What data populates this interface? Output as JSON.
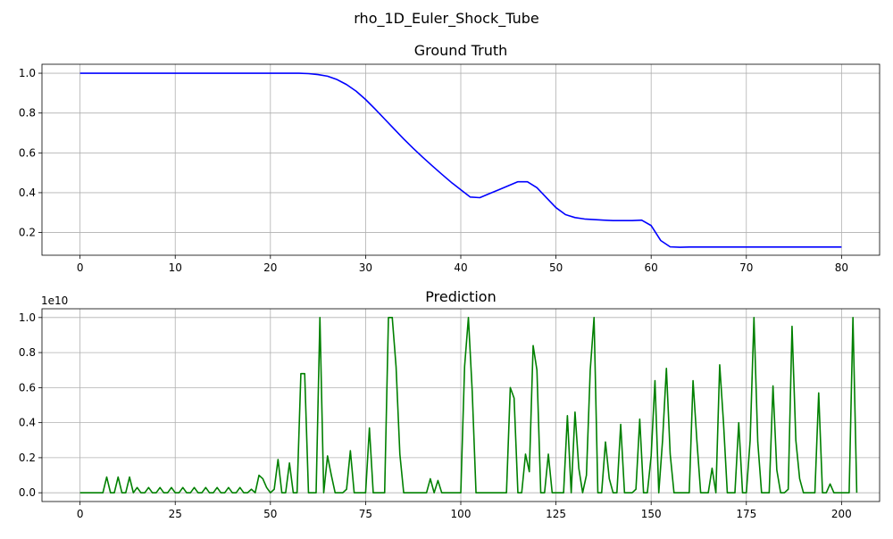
{
  "figure": {
    "suptitle": "rho_1D_Euler_Shock_Tube"
  },
  "chart_data": [
    {
      "type": "line",
      "title": "Ground Truth",
      "xlabel": "",
      "ylabel": "",
      "xlim": [
        -4,
        84
      ],
      "ylim": [
        0.086,
        1.045
      ],
      "xticks": [
        0,
        10,
        20,
        30,
        40,
        50,
        60,
        70,
        80
      ],
      "yticks": [
        0.2,
        0.4,
        0.6,
        0.8,
        1.0
      ],
      "ytick_labels": [
        "0.2",
        "0.4",
        "0.6",
        "0.8",
        "1.0"
      ],
      "y_offset_label": "",
      "grid": true,
      "color": "#0000ff",
      "series": [
        {
          "x": [
            0,
            1,
            2,
            3,
            4,
            5,
            6,
            7,
            8,
            9,
            10,
            11,
            12,
            13,
            14,
            15,
            16,
            17,
            18,
            19,
            20,
            21,
            22,
            23,
            24,
            25,
            26,
            27,
            28,
            29,
            30,
            31,
            32,
            33,
            34,
            35,
            36,
            37,
            38,
            39,
            40,
            41,
            42,
            43,
            44,
            45,
            46,
            47,
            48,
            49,
            50,
            51,
            52,
            53,
            54,
            55,
            56,
            57,
            58,
            59,
            60,
            61,
            62,
            63,
            64,
            65,
            66,
            67,
            68,
            69,
            70,
            71,
            72,
            73,
            74,
            75,
            76,
            77,
            78,
            79,
            80
          ],
          "values": [
            1.0,
            1.0,
            1.0,
            1.0,
            1.0,
            1.0,
            1.0,
            1.0,
            1.0,
            1.0,
            1.0,
            1.0,
            1.0,
            1.0,
            1.0,
            1.0,
            1.0,
            1.0,
            1.0,
            1.0,
            1.0,
            1.0,
            1.0,
            1.0,
            0.998,
            0.993,
            0.985,
            0.968,
            0.943,
            0.91,
            0.868,
            0.82,
            0.77,
            0.72,
            0.67,
            0.623,
            0.578,
            0.535,
            0.493,
            0.452,
            0.415,
            0.378,
            0.375,
            0.395,
            0.415,
            0.435,
            0.455,
            0.455,
            0.425,
            0.375,
            0.325,
            0.29,
            0.275,
            0.268,
            0.265,
            0.262,
            0.26,
            0.26,
            0.26,
            0.262,
            0.235,
            0.16,
            0.128,
            0.126,
            0.127,
            0.127,
            0.127,
            0.127,
            0.127,
            0.127,
            0.127,
            0.127,
            0.127,
            0.127,
            0.127,
            0.127,
            0.127,
            0.127,
            0.127,
            0.127,
            0.127
          ]
        }
      ]
    },
    {
      "type": "line",
      "title": "Prediction",
      "xlabel": "",
      "ylabel": "",
      "xlim": [
        -10,
        210
      ],
      "ylim": [
        -0.05,
        1.05
      ],
      "xticks": [
        0,
        25,
        50,
        75,
        100,
        125,
        150,
        175,
        200
      ],
      "yticks": [
        0.0,
        0.2,
        0.4,
        0.6,
        0.8,
        1.0
      ],
      "ytick_labels": [
        "0.0",
        "0.2",
        "0.4",
        "0.6",
        "0.8",
        "1.0"
      ],
      "y_offset_label": "1e10",
      "grid": true,
      "color": "#008000",
      "series": [
        {
          "x_step": 1,
          "values": [
            0,
            0,
            0,
            0,
            0,
            0,
            0,
            0.09,
            0,
            0,
            0.09,
            0,
            0,
            0.09,
            0,
            0.03,
            0,
            0,
            0.03,
            0,
            0,
            0.03,
            0,
            0,
            0.03,
            0,
            0,
            0.03,
            0,
            0,
            0.03,
            0,
            0,
            0.03,
            0,
            0,
            0.03,
            0,
            0,
            0.03,
            0,
            0,
            0.03,
            0,
            0,
            0.02,
            0,
            0.1,
            0.08,
            0.03,
            0,
            0.02,
            0.19,
            0,
            0,
            0.17,
            0,
            0,
            0.68,
            0.68,
            0,
            0,
            0,
            1.0,
            0,
            0.21,
            0.1,
            0,
            0,
            0,
            0.02,
            0.24,
            0,
            0,
            0,
            0,
            0.37,
            0,
            0,
            0,
            0,
            1.0,
            1.0,
            0.72,
            0.22,
            0,
            0,
            0,
            0,
            0,
            0,
            0,
            0.08,
            0,
            0.07,
            0,
            0,
            0,
            0,
            0,
            0,
            0.72,
            1.0,
            0.58,
            0,
            0,
            0,
            0,
            0,
            0,
            0,
            0,
            0,
            0.6,
            0.54,
            0,
            0,
            0.22,
            0.12,
            0.84,
            0.7,
            0,
            0,
            0.22,
            0,
            0,
            0,
            0,
            0.44,
            0,
            0.46,
            0.14,
            0,
            0.1,
            0.7,
            1.0,
            0,
            0,
            0.29,
            0.08,
            0,
            0,
            0.39,
            0,
            0,
            0,
            0.02,
            0.42,
            0,
            0,
            0.21,
            0.64,
            0,
            0.3,
            0.71,
            0.22,
            0,
            0,
            0,
            0,
            0,
            0.64,
            0.3,
            0,
            0,
            0,
            0.14,
            0,
            0.73,
            0.4,
            0,
            0,
            0,
            0.4,
            0,
            0,
            0.3,
            1.0,
            0.29,
            0,
            0,
            0,
            0.61,
            0.13,
            0,
            0,
            0.02,
            0.95,
            0.3,
            0.08,
            0,
            0,
            0,
            0,
            0.57,
            0,
            0,
            0.05,
            0,
            0,
            0,
            0,
            0,
            1.0,
            0
          ]
        }
      ]
    }
  ]
}
